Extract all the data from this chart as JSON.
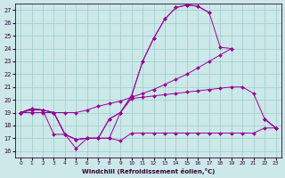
{
  "xlabel": "Windchill (Refroidissement éolien,°C)",
  "bg_color": "#cce8e8",
  "line_color": "#990099",
  "grid_color": "#99cccc",
  "x_ticks": [
    0,
    1,
    2,
    3,
    4,
    5,
    6,
    7,
    8,
    9,
    10,
    11,
    12,
    13,
    14,
    15,
    16,
    17,
    18,
    19,
    20,
    21,
    22,
    23
  ],
  "y_ticks": [
    16,
    17,
    18,
    19,
    20,
    21,
    22,
    23,
    24,
    25,
    26,
    27
  ],
  "xlim": [
    -0.5,
    23.5
  ],
  "ylim": [
    15.5,
    27.5
  ],
  "lines": [
    {
      "x": [
        0,
        1,
        2,
        3,
        4,
        5,
        6,
        7,
        8,
        9,
        10,
        11,
        12,
        13,
        14,
        15,
        16,
        17,
        18,
        19,
        20,
        21,
        22,
        23
      ],
      "y": [
        19.0,
        19.3,
        19.2,
        19.0,
        17.3,
        16.9,
        17.0,
        17.0,
        18.5,
        19.0,
        20.3,
        23.0,
        24.8,
        26.3,
        27.2,
        27.4,
        27.3,
        26.8,
        null,
        null,
        null,
        null,
        null,
        null
      ]
    },
    {
      "x": [
        0,
        1,
        2,
        3,
        4,
        5,
        6,
        7,
        8,
        9,
        10,
        11,
        12,
        13,
        14,
        15,
        16,
        17,
        18,
        19,
        20,
        21,
        22,
        23
      ],
      "y": [
        19.0,
        19.3,
        19.2,
        19.0,
        17.3,
        16.9,
        17.0,
        17.0,
        18.5,
        19.0,
        20.3,
        23.0,
        24.8,
        26.3,
        27.2,
        27.4,
        27.3,
        26.8,
        24.1,
        24.0,
        null,
        null,
        18.5,
        17.8
      ]
    },
    {
      "x": [
        0,
        1,
        2,
        3,
        4,
        5,
        6,
        7,
        8,
        9,
        10,
        11,
        12,
        13,
        14,
        15,
        16,
        17,
        18,
        19,
        20,
        21,
        22,
        23
      ],
      "y": [
        19.0,
        19.0,
        19.0,
        19.0,
        19.0,
        19.0,
        19.2,
        19.5,
        19.7,
        19.9,
        20.2,
        20.5,
        20.8,
        21.2,
        21.6,
        22.0,
        22.5,
        23.0,
        23.5,
        24.0,
        null,
        null,
        18.5,
        17.8
      ]
    },
    {
      "x": [
        0,
        1,
        2,
        3,
        4,
        5,
        6,
        7,
        8,
        9,
        10,
        11,
        12,
        13,
        14,
        15,
        16,
        17,
        18,
        19,
        20,
        21,
        22,
        23
      ],
      "y": [
        19.0,
        19.3,
        19.2,
        19.0,
        17.3,
        16.9,
        17.0,
        17.0,
        17.0,
        19.0,
        20.1,
        20.2,
        20.3,
        20.4,
        20.5,
        20.6,
        20.7,
        20.8,
        20.9,
        21.0,
        21.0,
        20.5,
        18.5,
        17.8
      ]
    },
    {
      "x": [
        0,
        1,
        2,
        3,
        4,
        5,
        6,
        7,
        8,
        9,
        10,
        11,
        12,
        13,
        14,
        15,
        16,
        17,
        18,
        19,
        20,
        21,
        22,
        23
      ],
      "y": [
        19.0,
        19.2,
        19.2,
        17.3,
        17.3,
        16.2,
        17.0,
        17.0,
        17.0,
        16.8,
        17.4,
        17.4,
        17.4,
        17.4,
        17.4,
        17.4,
        17.4,
        17.4,
        17.4,
        17.4,
        17.4,
        17.4,
        17.8,
        17.8
      ]
    }
  ]
}
